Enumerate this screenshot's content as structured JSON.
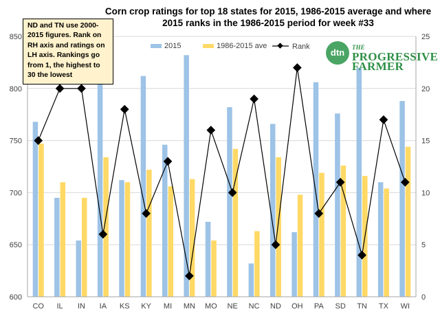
{
  "colors": {
    "bar2015": "#9dc3e6",
    "barAvg": "#ffd966",
    "line": "#000000",
    "grid": "#d9d9d9",
    "axis": "#a6a6a6",
    "logo": "#4aa564"
  },
  "logo": {
    "badge": "dtn",
    "the": "THE",
    "name": "PROGRESSIVE FARMER"
  },
  "chart_data": {
    "type": "bar",
    "title": "Corn crop ratings for top 18 states for 2015, 1986-2015 average and where 2015 ranks in the 1986-2015 period for week #33",
    "note": "ND and TN use 2000-2015 figures. Rank on RH axis and ratings on LH axis. Rankings go from 1, the highest to 30 the lowest",
    "categories": [
      "CO",
      "IL",
      "IN",
      "IA",
      "KS",
      "KY",
      "MI",
      "MN",
      "MO",
      "NE",
      "NC",
      "ND",
      "OH",
      "PA",
      "SD",
      "TN",
      "TX",
      "WI"
    ],
    "series": [
      {
        "name": "2015",
        "type": "bar",
        "axis": "left",
        "values": [
          768,
          695,
          654,
          804,
          712,
          812,
          746,
          832,
          672,
          782,
          632,
          766,
          662,
          806,
          776,
          820,
          710,
          788
        ]
      },
      {
        "name": "1986-2015 ave",
        "type": "bar",
        "axis": "left",
        "values": [
          747,
          710,
          695,
          734,
          710,
          722,
          706,
          713,
          654,
          742,
          663,
          734,
          698,
          719,
          726,
          716,
          704,
          744
        ]
      },
      {
        "name": "Rank",
        "type": "line",
        "axis": "right",
        "values": [
          15,
          20,
          20,
          6,
          18,
          8,
          13,
          2,
          16,
          10,
          19,
          5,
          22,
          8,
          11,
          4,
          17,
          11
        ]
      }
    ],
    "ylim": [
      600,
      850
    ],
    "yticks": [
      "600",
      "650",
      "700",
      "750",
      "800",
      "850"
    ],
    "y2lim": [
      0,
      25
    ],
    "y2ticks": [
      "0",
      "5",
      "10",
      "15",
      "20",
      "25"
    ],
    "grid": true,
    "legend": "top"
  }
}
